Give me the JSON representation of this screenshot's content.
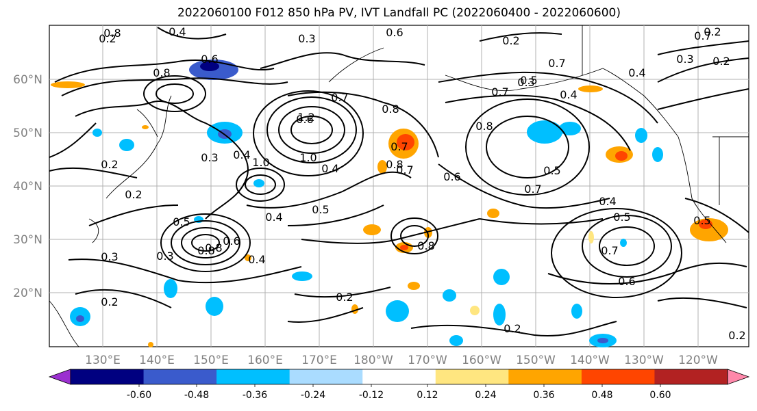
{
  "title": "2022060100 F012 850 hPa PV, IVT Landfall PC (2022060400 - 2022060600)",
  "lat_labels": [
    "60°N",
    "50°N",
    "40°N",
    "30°N",
    "20°N"
  ],
  "lon_labels": [
    "130°E",
    "140°E",
    "150°E",
    "160°E",
    "170°E",
    "180°W",
    "170°W",
    "160°W",
    "150°W",
    "140°W",
    "130°W",
    "120°W"
  ],
  "contour_labels": [
    "0.8",
    "0.4",
    "0.2",
    "0.3",
    "0.6",
    "0.2",
    "0.8",
    "0.7",
    "0.6",
    "0.8",
    "1.0",
    "0.7",
    "1.2",
    "0.8",
    "0.3",
    "0.4",
    "0.3",
    "0.2",
    "1.0",
    "0.4",
    "0.8",
    "0.7",
    "0.5",
    "0.4",
    "0.2",
    "0.7",
    "0.5",
    "0.6",
    "0.4",
    "0.5",
    "0.4",
    "0.5",
    "0.3",
    "0.7",
    "0.6",
    "0.5",
    "0.6",
    "0.3",
    "0.2",
    "0.8",
    "0.8",
    "0.4",
    "0.2",
    "0.2",
    "0.2",
    "0.6",
    "0.7",
    "0.2",
    "0.7",
    "0.5",
    "0.4",
    "0.3",
    "0.7",
    "0.8",
    "0.2"
  ],
  "colorbar": {
    "colors": [
      "#9b30d0",
      "#000080",
      "#3a5bcc",
      "#00bfff",
      "#aadcff",
      "#ffffff",
      "#ffe680",
      "#ffa500",
      "#ff4500",
      "#b22222",
      "#ff88aa"
    ],
    "labels": [
      "-0.60",
      "-0.48",
      "-0.36",
      "-0.24",
      "-0.12",
      "0.12",
      "0.24",
      "0.36",
      "0.48",
      "0.60"
    ]
  }
}
